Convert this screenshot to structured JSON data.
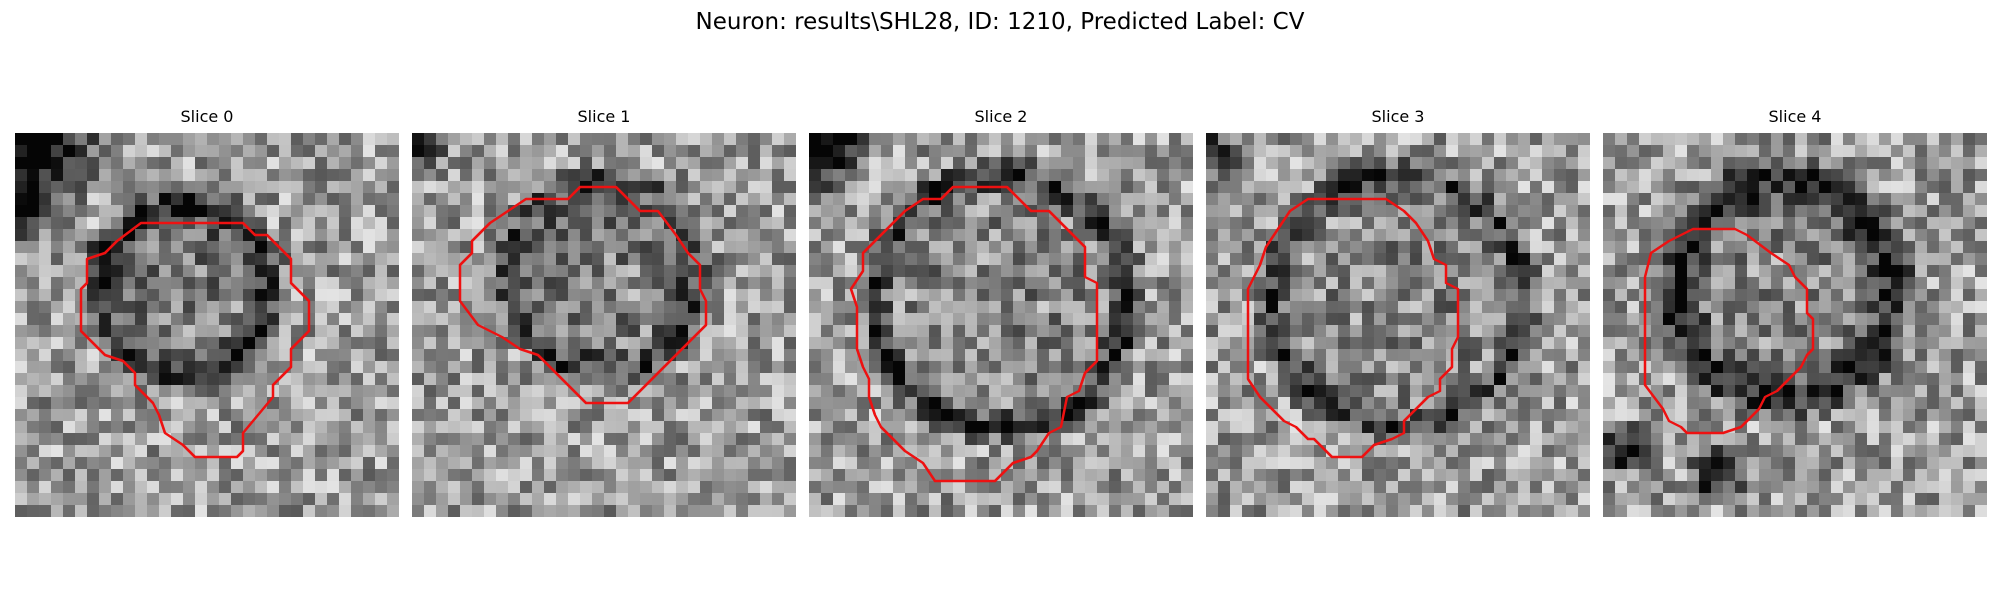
{
  "figure": {
    "title": "Neuron: results\\SHL28, ID: 1210, Predicted Label: CV"
  },
  "contour_color": "#ee1111",
  "slices": [
    {
      "title": "Slice 0"
    },
    {
      "title": "Slice 1"
    },
    {
      "title": "Slice 2"
    },
    {
      "title": "Slice 3"
    },
    {
      "title": "Slice 4"
    }
  ]
}
